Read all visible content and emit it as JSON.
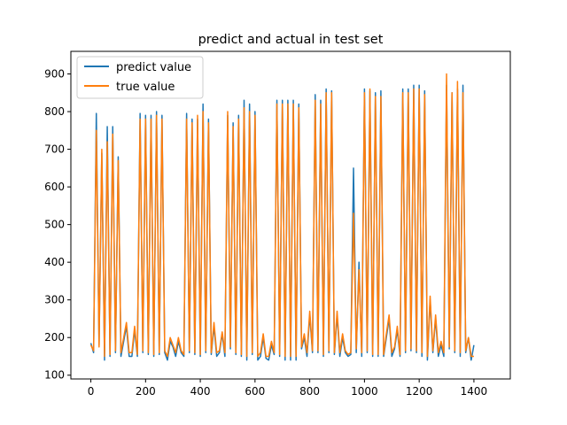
{
  "chart_data": {
    "type": "line",
    "title": "predict and actual in test set",
    "xlabel": "",
    "ylabel": "",
    "xlim": [
      -73,
      1533
    ],
    "ylim": [
      90,
      960
    ],
    "xticks": [
      0,
      200,
      400,
      600,
      800,
      1000,
      1200,
      1400
    ],
    "yticks": [
      100,
      200,
      300,
      400,
      500,
      600,
      700,
      800,
      900
    ],
    "grid": false,
    "legend_position": "top-left",
    "colors": {
      "predict": "#1f77b4",
      "true": "#ff7f0e"
    },
    "x_start": 0,
    "x_step": 10,
    "series": [
      {
        "name": "predict value",
        "values": [
          185,
          160,
          795,
          180,
          690,
          140,
          760,
          150,
          760,
          160,
          680,
          150,
          190,
          230,
          150,
          150,
          220,
          150,
          795,
          160,
          790,
          155,
          790,
          150,
          800,
          155,
          790,
          160,
          140,
          190,
          175,
          150,
          190,
          160,
          150,
          795,
          160,
          780,
          155,
          780,
          150,
          820,
          160,
          780,
          155,
          230,
          150,
          160,
          210,
          150,
          790,
          170,
          770,
          155,
          790,
          150,
          830,
          140,
          820,
          155,
          800,
          140,
          150,
          200,
          145,
          140,
          180,
          155,
          830,
          150,
          830,
          140,
          830,
          140,
          830,
          140,
          820,
          170,
          200,
          150,
          260,
          160,
          845,
          160,
          830,
          150,
          860,
          160,
          855,
          155,
          260,
          150,
          200,
          160,
          150,
          155,
          650,
          160,
          400,
          150,
          860,
          160,
          855,
          150,
          850,
          150,
          855,
          150,
          200,
          250,
          150,
          170,
          220,
          150,
          860,
          160,
          860,
          165,
          870,
          160,
          870,
          150,
          855,
          140,
          300,
          160,
          250,
          150,
          180,
          150,
          870,
          170,
          850,
          160,
          860,
          150,
          870,
          160,
          200,
          140,
          180
        ]
      },
      {
        "name": "true value",
        "values": [
          180,
          165,
          750,
          175,
          700,
          150,
          720,
          155,
          740,
          165,
          670,
          160,
          200,
          240,
          160,
          160,
          230,
          155,
          780,
          165,
          780,
          160,
          780,
          155,
          790,
          160,
          780,
          165,
          150,
          200,
          180,
          160,
          200,
          165,
          155,
          780,
          165,
          770,
          160,
          790,
          155,
          800,
          165,
          770,
          160,
          240,
          160,
          165,
          215,
          160,
          800,
          175,
          760,
          160,
          780,
          155,
          810,
          150,
          800,
          160,
          790,
          150,
          160,
          210,
          150,
          150,
          190,
          160,
          820,
          155,
          820,
          150,
          820,
          150,
          820,
          150,
          810,
          175,
          210,
          160,
          270,
          165,
          830,
          165,
          820,
          155,
          850,
          165,
          850,
          160,
          270,
          160,
          210,
          165,
          155,
          160,
          530,
          170,
          380,
          160,
          850,
          165,
          860,
          155,
          840,
          155,
          840,
          155,
          210,
          260,
          160,
          175,
          230,
          155,
          850,
          165,
          850,
          170,
          860,
          165,
          860,
          160,
          845,
          150,
          310,
          165,
          260,
          160,
          190,
          160,
          900,
          175,
          850,
          165,
          880,
          160,
          850,
          165,
          200,
          150,
          150
        ]
      }
    ]
  }
}
